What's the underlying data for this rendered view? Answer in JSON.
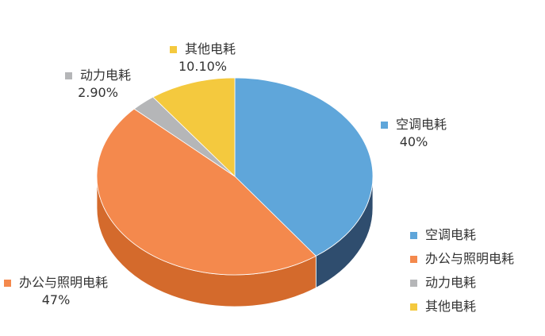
{
  "chart_data": {
    "type": "pie",
    "style": "3d",
    "start": "12 o'clock, clockwise",
    "legend_position": "bottom-right",
    "slices": [
      {
        "name": "空调电耗",
        "value": 40,
        "label": "40%",
        "color": "#5FA6DA",
        "side_color": "#2F4D6E"
      },
      {
        "name": "办公与照明电耗",
        "value": 47,
        "label": "47%",
        "color": "#F4894D",
        "side_color": "#D46A2C"
      },
      {
        "name": "动力电耗",
        "value": 2.9,
        "label": "2.90%",
        "color": "#B5B6B8",
        "side_color": "#8E8F91"
      },
      {
        "name": "其他电耗",
        "value": 10.1,
        "label": "10.10%",
        "color": "#F4C93E",
        "side_color": "#C99F22"
      }
    ]
  }
}
